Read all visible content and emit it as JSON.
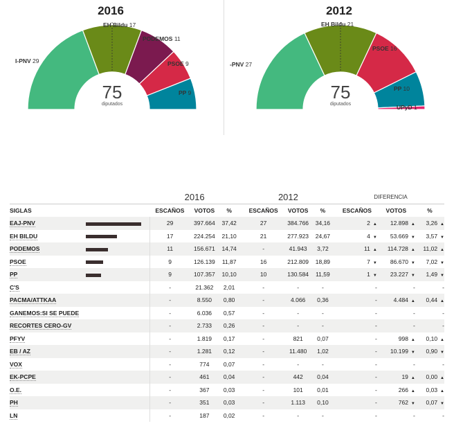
{
  "charts": [
    {
      "year": "2016",
      "center_number": "75",
      "center_label": "diputados",
      "parties": [
        {
          "name": "I-PNV",
          "seats": "29",
          "color": "#44b97f"
        },
        {
          "name": "EH Bildu",
          "seats": "17",
          "color": "#6a8a18"
        },
        {
          "name": "PODEMOS",
          "seats": "11",
          "color": "#7b1a4f"
        },
        {
          "name": "PSOE",
          "seats": "9",
          "color": "#d52947"
        },
        {
          "name": "PP",
          "seats": "9",
          "color": "#00849c"
        }
      ]
    },
    {
      "year": "2012",
      "center_number": "75",
      "center_label": "diputados",
      "parties": [
        {
          "name": "-PNV",
          "seats": "27",
          "color": "#44b97f"
        },
        {
          "name": "EH Bildu",
          "seats": "21",
          "color": "#6a8a18"
        },
        {
          "name": "PSOE",
          "seats": "16",
          "color": "#d52947"
        },
        {
          "name": "PP",
          "seats": "10",
          "color": "#00849c"
        },
        {
          "name": "UPyD",
          "seats": "1",
          "color": "#e5266d"
        }
      ]
    }
  ],
  "table": {
    "year_2016": "2016",
    "year_2012": "2012",
    "diff_header": "DIFERENCIA",
    "col_siglas": "SIGLAS",
    "col_escanos": "ESCAÑOS",
    "col_votos": "VOTOS",
    "col_pct": "%",
    "rows": [
      {
        "party": "EAJ-PNV",
        "bar": 37.42,
        "e16": "29",
        "v16": "397.664",
        "p16": "37,42",
        "e12": "27",
        "v12": "384.766",
        "p12": "34,16",
        "de": "2",
        "de_dir": "up",
        "dv": "12.898",
        "dv_dir": "up",
        "dp": "3,26",
        "dp_dir": "up"
      },
      {
        "party": "EH BILDU",
        "bar": 21.1,
        "e16": "17",
        "v16": "224.254",
        "p16": "21,10",
        "e12": "21",
        "v12": "277.923",
        "p12": "24,67",
        "de": "4",
        "de_dir": "down",
        "dv": "53.669",
        "dv_dir": "down",
        "dp": "3,57",
        "dp_dir": "down"
      },
      {
        "party": "PODEMOS",
        "bar": 14.74,
        "e16": "11",
        "v16": "156.671",
        "p16": "14,74",
        "e12": "-",
        "v12": "41.943",
        "p12": "3,72",
        "de": "11",
        "de_dir": "up",
        "dv": "114.728",
        "dv_dir": "up",
        "dp": "11,02",
        "dp_dir": "up"
      },
      {
        "party": "PSOE",
        "bar": 11.87,
        "e16": "9",
        "v16": "126.139",
        "p16": "11,87",
        "e12": "16",
        "v12": "212.809",
        "p12": "18,89",
        "de": "7",
        "de_dir": "down",
        "dv": "86.670",
        "dv_dir": "down",
        "dp": "7,02",
        "dp_dir": "down"
      },
      {
        "party": "PP",
        "bar": 10.1,
        "e16": "9",
        "v16": "107.357",
        "p16": "10,10",
        "e12": "10",
        "v12": "130.584",
        "p12": "11,59",
        "de": "1",
        "de_dir": "down",
        "dv": "23.227",
        "dv_dir": "down",
        "dp": "1,49",
        "dp_dir": "down"
      },
      {
        "party": "C'S",
        "bar": 0,
        "e16": "-",
        "v16": "21.362",
        "p16": "2,01",
        "e12": "-",
        "v12": "-",
        "p12": "-",
        "de": "-",
        "de_dir": "",
        "dv": "-",
        "dv_dir": "",
        "dp": "-",
        "dp_dir": ""
      },
      {
        "party": "PACMA/ATTKAA",
        "bar": 0,
        "e16": "-",
        "v16": "8.550",
        "p16": "0,80",
        "e12": "-",
        "v12": "4.066",
        "p12": "0,36",
        "de": "-",
        "de_dir": "",
        "dv": "4.484",
        "dv_dir": "up",
        "dp": "0,44",
        "dp_dir": "up"
      },
      {
        "party": "GANEMOS:SI SE PUEDE",
        "bar": 0,
        "e16": "-",
        "v16": "6.036",
        "p16": "0,57",
        "e12": "-",
        "v12": "-",
        "p12": "-",
        "de": "-",
        "de_dir": "",
        "dv": "-",
        "dv_dir": "",
        "dp": "-",
        "dp_dir": ""
      },
      {
        "party": "RECORTES CERO-GV",
        "bar": 0,
        "e16": "-",
        "v16": "2.733",
        "p16": "0,26",
        "e12": "-",
        "v12": "-",
        "p12": "-",
        "de": "-",
        "de_dir": "",
        "dv": "-",
        "dv_dir": "",
        "dp": "-",
        "dp_dir": ""
      },
      {
        "party": "PFYV",
        "bar": 0,
        "e16": "-",
        "v16": "1.819",
        "p16": "0,17",
        "e12": "-",
        "v12": "821",
        "p12": "0,07",
        "de": "-",
        "de_dir": "",
        "dv": "998",
        "dv_dir": "up",
        "dp": "0,10",
        "dp_dir": "up"
      },
      {
        "party": "EB / AZ",
        "bar": 0,
        "e16": "-",
        "v16": "1.281",
        "p16": "0,12",
        "e12": "-",
        "v12": "11.480",
        "p12": "1,02",
        "de": "-",
        "de_dir": "",
        "dv": "10.199",
        "dv_dir": "down",
        "dp": "0,90",
        "dp_dir": "down"
      },
      {
        "party": "VOX",
        "bar": 0,
        "e16": "-",
        "v16": "774",
        "p16": "0,07",
        "e12": "-",
        "v12": "-",
        "p12": "-",
        "de": "-",
        "de_dir": "",
        "dv": "-",
        "dv_dir": "",
        "dp": "-",
        "dp_dir": ""
      },
      {
        "party": "EK-PCPE",
        "bar": 0,
        "e16": "-",
        "v16": "461",
        "p16": "0,04",
        "e12": "-",
        "v12": "442",
        "p12": "0,04",
        "de": "-",
        "de_dir": "",
        "dv": "19",
        "dv_dir": "up",
        "dp": "0,00",
        "dp_dir": "up"
      },
      {
        "party": "O.E.",
        "bar": 0,
        "e16": "-",
        "v16": "367",
        "p16": "0,03",
        "e12": "-",
        "v12": "101",
        "p12": "0,01",
        "de": "-",
        "de_dir": "",
        "dv": "266",
        "dv_dir": "up",
        "dp": "0,03",
        "dp_dir": "up"
      },
      {
        "party": "PH",
        "bar": 0,
        "e16": "-",
        "v16": "351",
        "p16": "0,03",
        "e12": "-",
        "v12": "1.113",
        "p12": "0,10",
        "de": "-",
        "de_dir": "",
        "dv": "762",
        "dv_dir": "down",
        "dp": "0,07",
        "dp_dir": "down"
      },
      {
        "party": "LN",
        "bar": 0,
        "e16": "-",
        "v16": "187",
        "p16": "0,02",
        "e12": "-",
        "v12": "-",
        "p12": "-",
        "de": "-",
        "de_dir": "",
        "dv": "-",
        "dv_dir": "",
        "dp": "-",
        "dp_dir": ""
      }
    ]
  }
}
